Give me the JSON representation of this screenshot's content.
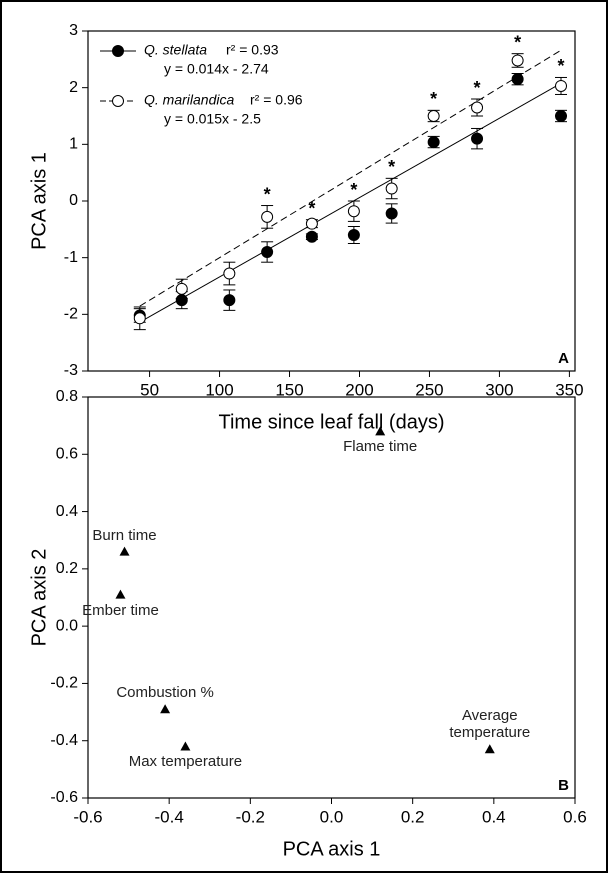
{
  "chart_data": [
    {
      "type": "errorscatter",
      "panel_label": "A",
      "xlabel": "Time since leaf fall (days)",
      "ylabel": "PCA axis 1",
      "x": [
        43,
        73,
        107,
        134,
        166,
        196,
        223,
        253,
        284,
        313,
        344
      ],
      "xlim": [
        6,
        354
      ],
      "xticks": [
        50,
        100,
        150,
        200,
        250,
        300,
        350
      ],
      "ylim": [
        -3,
        3
      ],
      "yticks": [
        -3,
        -2,
        -1,
        0,
        1,
        2,
        3
      ],
      "series": [
        {
          "name": "Q. stellata",
          "r2_label": "r² = 0.93",
          "equation": "y = 0.014x - 2.74",
          "slope": 0.014,
          "intercept": -2.74,
          "color": "#000000",
          "marker": "filled",
          "dashed": false,
          "values": [
            -2.02,
            -1.75,
            -1.75,
            -0.9,
            -0.63,
            -0.6,
            -0.22,
            1.04,
            1.1,
            2.15,
            1.5
          ],
          "errors": [
            0.12,
            0.15,
            0.18,
            0.18,
            0.05,
            0.15,
            0.17,
            0.1,
            0.18,
            0.1,
            0.1
          ]
        },
        {
          "name": "Q. marilandica",
          "r2_label": "r² = 0.96",
          "equation": "y = 0.015x - 2.5",
          "slope": 0.015,
          "intercept": -2.5,
          "color": "#000000",
          "marker": "open",
          "dashed": true,
          "values": [
            -2.07,
            -1.55,
            -1.28,
            -0.28,
            -0.4,
            -0.18,
            0.22,
            1.5,
            1.65,
            2.48,
            2.03
          ],
          "errors": [
            0.2,
            0.17,
            0.2,
            0.2,
            0.07,
            0.18,
            0.18,
            0.1,
            0.15,
            0.12,
            0.15
          ]
        }
      ],
      "annotations": [
        null,
        null,
        null,
        "*",
        "*",
        "*",
        "*",
        "*",
        "*",
        "*",
        "*"
      ]
    },
    {
      "type": "labeledscatter",
      "panel_label": "B",
      "xlabel": "PCA axis 1",
      "ylabel": "PCA axis 2",
      "xlim": [
        -0.6,
        0.6
      ],
      "xticks": [
        -0.6,
        -0.4,
        -0.2,
        {
          "value": 0,
          "label": "0.0"
        },
        0.2,
        0.4,
        0.6
      ],
      "ylim": [
        -0.6,
        0.8
      ],
      "yticks": [
        -0.6,
        -0.4,
        -0.2,
        {
          "value": 0,
          "label": "0.0"
        },
        0.2,
        0.4,
        0.6,
        0.8
      ],
      "color": "#000000",
      "labels": [
        "Flame time",
        "Burn time",
        "Ember time",
        "Combustion %",
        "Max temperature",
        "Average temperature"
      ],
      "x": [
        0.12,
        -0.51,
        -0.52,
        -0.41,
        -0.36,
        0.39
      ],
      "values": [
        0.68,
        0.26,
        0.11,
        -0.29,
        -0.42,
        -0.43
      ],
      "label_pos": [
        "below",
        "above",
        "below",
        "above",
        "below",
        "above-stacked"
      ]
    }
  ]
}
